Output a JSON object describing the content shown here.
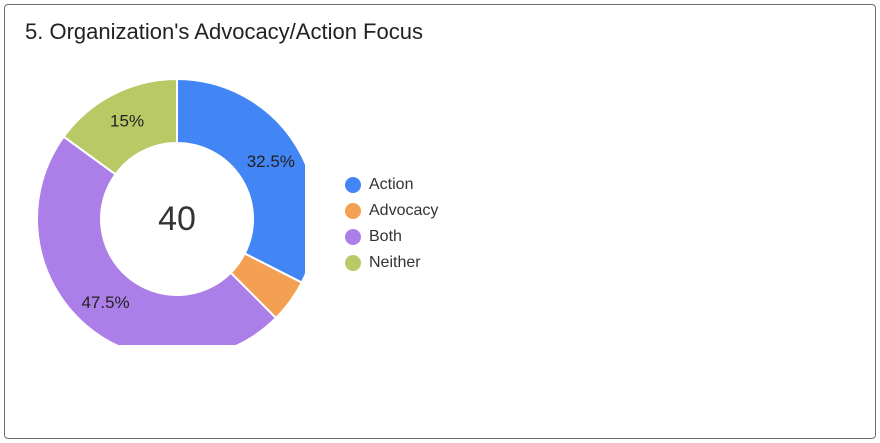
{
  "title": "5. Organization's Advocacy/Action Focus",
  "chart_data": {
    "type": "pie",
    "donut": true,
    "total_label": "40",
    "slices": [
      {
        "label": "Action",
        "value": 32.5,
        "value_label": "32.5%",
        "color": "#4285f4"
      },
      {
        "label": "Advocacy",
        "value": 5,
        "value_label": "",
        "color": "#f4a053"
      },
      {
        "label": "Both",
        "value": 47.5,
        "value_label": "47.5%",
        "color": "#ab7ee8"
      },
      {
        "label": "Neither",
        "value": 15,
        "value_label": "15%",
        "color": "#b9c966"
      }
    ],
    "legend": "right"
  }
}
